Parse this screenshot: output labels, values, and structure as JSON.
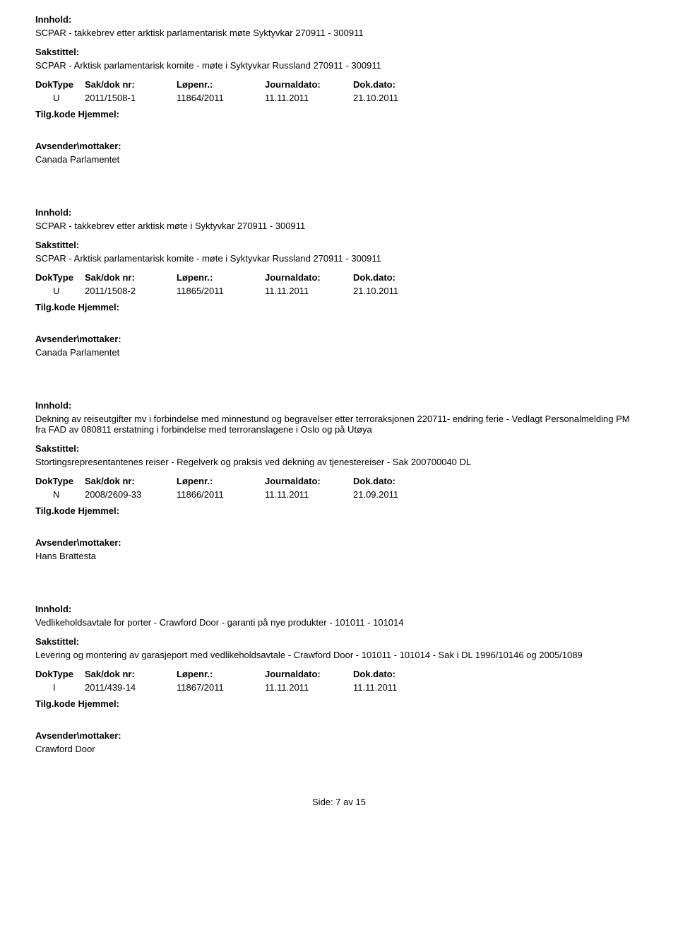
{
  "labels": {
    "innhold": "Innhold:",
    "sakstittel": "Sakstittel:",
    "doktype": "DokType",
    "sakdok": "Sak/dok nr:",
    "lopenr": "Løpenr.:",
    "journaldato": "Journaldato:",
    "dokdato": "Dok.dato:",
    "tilgkode": "Tilg.kode",
    "hjemmel": "Hjemmel:",
    "avsender": "Avsender\\mottaker:"
  },
  "records": [
    {
      "innhold": "SCPAR - takkebrev etter arktisk parlamentarisk møte Syktyvkar 270911 - 300911",
      "sakstittel": "SCPAR - Arktisk parlamentarisk komite - møte i Syktyvkar Russland 270911 - 300911",
      "doktype": "U",
      "sakdok": "2011/1508-1",
      "lopenr": "11864/2011",
      "journaldato": "11.11.2011",
      "dokdato": "21.10.2011",
      "avsender": "Canada Parlamentet"
    },
    {
      "innhold": "SCPAR - takkebrev etter arktisk møte i Syktyvkar 270911 - 300911",
      "sakstittel": "SCPAR - Arktisk parlamentarisk komite - møte i Syktyvkar Russland 270911 - 300911",
      "doktype": "U",
      "sakdok": "2011/1508-2",
      "lopenr": "11865/2011",
      "journaldato": "11.11.2011",
      "dokdato": "21.10.2011",
      "avsender": "Canada Parlamentet"
    },
    {
      "innhold": "Dekning av reiseutgifter mv i forbindelse med minnestund og begravelser etter terroraksjonen 220711- endring ferie - Vedlagt Personalmelding PM fra FAD av 080811 erstatning i forbindelse med terroranslagene i Oslo og på Utøya",
      "sakstittel": "Stortingsrepresentantenes reiser - Regelverk og praksis ved dekning av tjenestereiser - Sak 200700040 DL",
      "doktype": "N",
      "sakdok": "2008/2609-33",
      "lopenr": "11866/2011",
      "journaldato": "11.11.2011",
      "dokdato": "21.09.2011",
      "avsender": "Hans Brattesta"
    },
    {
      "innhold": "Vedlikeholdsavtale for porter - Crawford Door -  garanti på nye produkter  - 101011 - 101014",
      "sakstittel": "Levering og  montering av garasjeport med vedlikeholdsavtale - Crawford Door - 101011 - 101014 - Sak i DL 1996/10146 og 2005/1089",
      "doktype": "I",
      "sakdok": "2011/439-14",
      "lopenr": "11867/2011",
      "journaldato": "11.11.2011",
      "dokdato": "11.11.2011",
      "avsender": "Crawford Door"
    }
  ],
  "footer": {
    "side_label": "Side:",
    "page": "7",
    "av_label": "av",
    "total": "15"
  }
}
